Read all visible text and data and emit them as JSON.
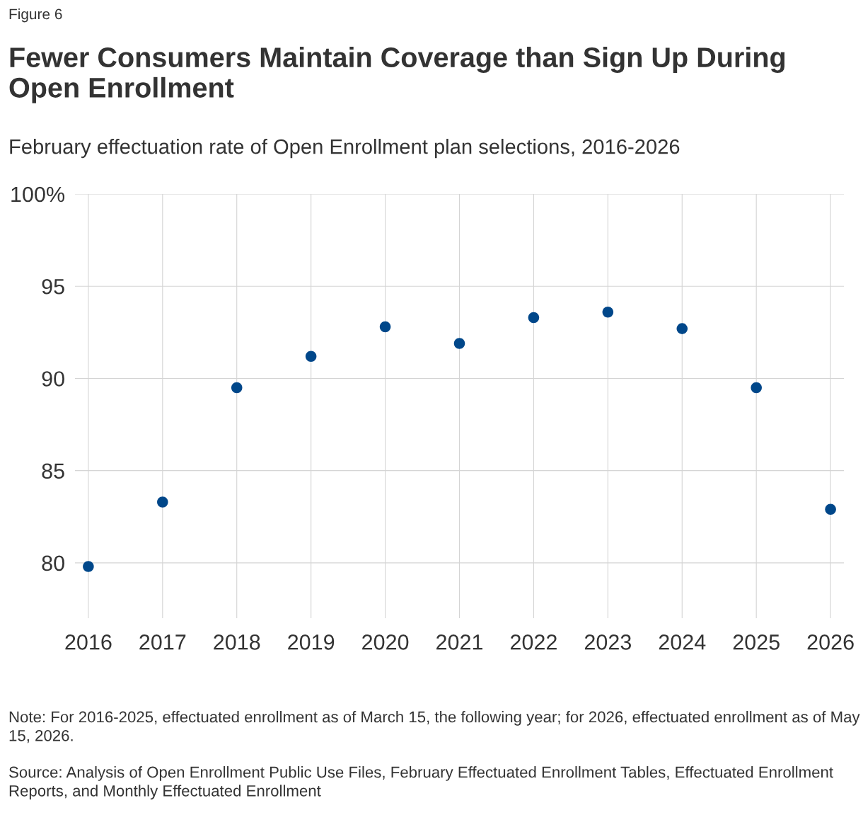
{
  "chart_data": {
    "type": "scatter",
    "title": "Fewer Consumers Maintain Coverage than Sign Up During Open Enrollment",
    "subtitle": "February effectuation rate of Open Enrollment plan selections, 2016-2026",
    "annotations": [
      "Figure 6",
      "Note: For 2016-2025, effectuated enrollment as of March 15, the following year; for 2026, effectuated enrollment as of May 15, 2026.",
      "Source: Analysis of Open Enrollment Public Use Files, February Effectuated Enrollment Tables, Effectuated Enrollment Reports, and Monthly Effectuated Enrollment"
    ],
    "categories": [
      "2016",
      "2017",
      "2018",
      "2019",
      "2020",
      "2021",
      "2022",
      "2023",
      "2024",
      "2025",
      "2026"
    ],
    "values": [
      79.8,
      83.3,
      89.5,
      91.2,
      92.8,
      91.9,
      93.3,
      93.6,
      92.7,
      89.5,
      82.9
    ],
    "color": "#00478a",
    "ylim": [
      77,
      100
    ],
    "yticks": [
      {
        "value": 100,
        "label": "100%"
      },
      95,
      90,
      85,
      80
    ],
    "grid": true,
    "marker": "circle"
  }
}
